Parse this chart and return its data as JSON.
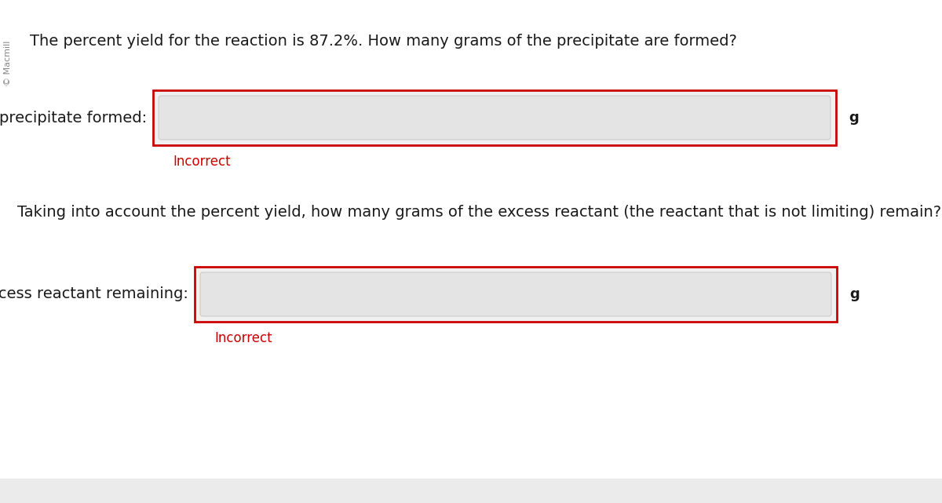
{
  "background_color": "#ffffff",
  "footer_color": "#ebebeb",
  "watermark_text": "© Macmill",
  "question1": "The percent yield for the reaction is 87.2%. How many grams of the precipitate are formed?",
  "label1": "precipitate formed:",
  "label2": "excess reactant remaining:",
  "incorrect_text": "Incorrect",
  "incorrect_color": "#cc0000",
  "question2": "Taking into account the percent yield, how many grams of the excess reactant (the reactant that is not limiting) remain?",
  "unit_label": "g",
  "box_border_color": "#cc0000",
  "box_fill_color": "#f0f0f0",
  "input_fill_color": "#e4e4e4",
  "text_color": "#1a1a1a",
  "font_size_question": 14,
  "font_size_label": 14,
  "font_size_incorrect": 12,
  "font_size_unit": 13,
  "font_size_watermark": 8
}
